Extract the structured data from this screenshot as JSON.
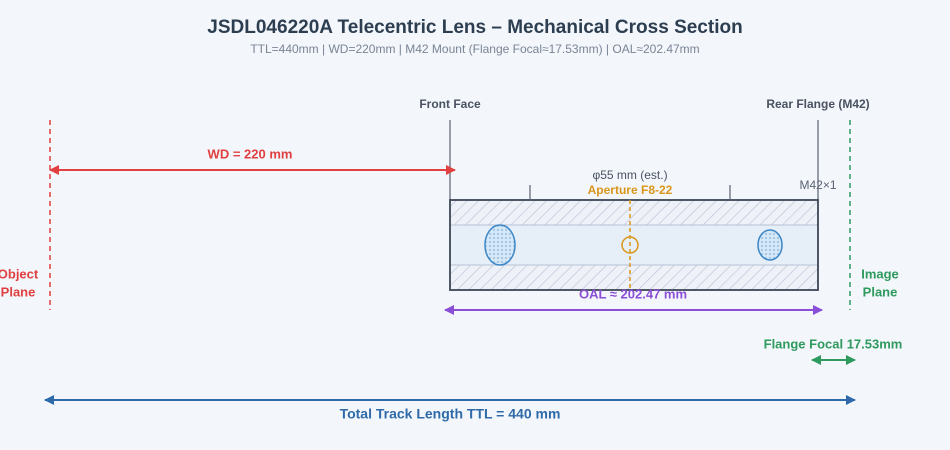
{
  "header": {
    "title": "JSDL046220A Telecentric Lens – Mechanical Cross Section",
    "subtitle": "TTL=440mm | WD=220mm | M42 Mount (Flange Focal≈17.53mm) | OAL≈202.47mm"
  },
  "planes": {
    "object": [
      "Object",
      "Plane"
    ],
    "image": [
      "Image",
      "Plane"
    ]
  },
  "faces": {
    "front": "Front Face",
    "rear": "Rear Flange (M42)"
  },
  "dimensions": {
    "wd": "WD = 220 mm",
    "oal": "OAL ≈ 202.47 mm",
    "flange_focal": "Flange Focal 17.53mm",
    "ttl": "Total Track Length TTL = 440 mm"
  },
  "lens": {
    "diameter": "φ55 mm (est.)",
    "aperture": "Aperture F8-22",
    "thread": "M42×1"
  }
}
